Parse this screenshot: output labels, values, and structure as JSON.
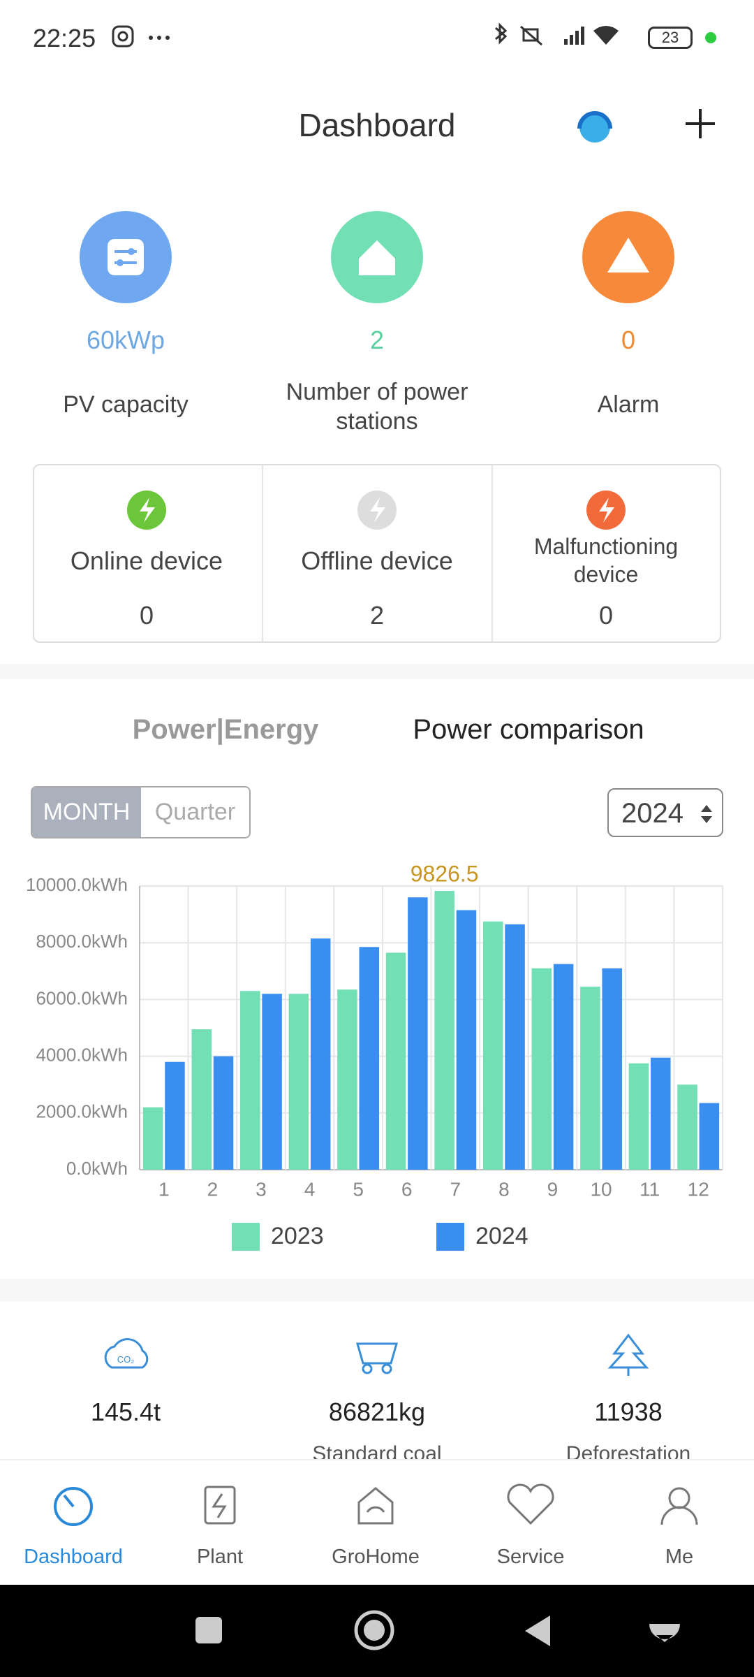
{
  "status_bar": {
    "time": "22:25",
    "battery": "23"
  },
  "header": {
    "title": "Dashboard"
  },
  "summary": [
    {
      "value": "60kWp",
      "label": "PV capacity"
    },
    {
      "value": "2",
      "label": "Number of power stations"
    },
    {
      "value": "0",
      "label": "Alarm"
    }
  ],
  "devices": [
    {
      "label": "Online device",
      "value": "0"
    },
    {
      "label": "Offline device",
      "value": "2"
    },
    {
      "label": "Malfunctioning device",
      "value": "0"
    }
  ],
  "tabs": [
    "Power|Energy",
    "Power comparison"
  ],
  "period_toggle": [
    "MONTH",
    "Quarter"
  ],
  "year": "2024",
  "chart_data": {
    "type": "bar",
    "categories": [
      "1",
      "2",
      "3",
      "4",
      "5",
      "6",
      "7",
      "8",
      "9",
      "10",
      "11",
      "12"
    ],
    "series": [
      {
        "name": "2023",
        "color": "#72e0b4",
        "values": [
          2200,
          4950,
          6300,
          6200,
          6350,
          7650,
          9826.5,
          8750,
          7100,
          6450,
          3750,
          3000
        ],
        "value_labels": [
          null,
          null,
          null,
          null,
          null,
          null,
          "9826.5",
          null,
          null,
          null,
          null,
          null
        ]
      },
      {
        "name": "2024",
        "color": "#3a8ef0",
        "values": [
          3800,
          4000,
          6200,
          8150,
          7850,
          9600,
          9150,
          8650,
          7250,
          7100,
          3950,
          2350
        ]
      }
    ],
    "ylim": [
      0,
      10000
    ],
    "yticks": [
      {
        "value": 0,
        "label": "0.0kWh"
      },
      {
        "value": 2000,
        "label": "2000.0kWh"
      },
      {
        "value": 4000,
        "label": "4000.0kWh"
      },
      {
        "value": 6000,
        "label": "6000.0kWh"
      },
      {
        "value": 8000,
        "label": "8000.0kWh"
      },
      {
        "value": 10000,
        "label": "10000.0kWh"
      }
    ],
    "grid": true,
    "legend": "bottom"
  },
  "impact": [
    {
      "value": "145.4t"
    },
    {
      "value": "86821kg",
      "label": "Standard coal"
    },
    {
      "value": "11938",
      "label": "Deforestation"
    }
  ],
  "nav": [
    "Dashboard",
    "Plant",
    "GroHome",
    "Service",
    "Me"
  ]
}
